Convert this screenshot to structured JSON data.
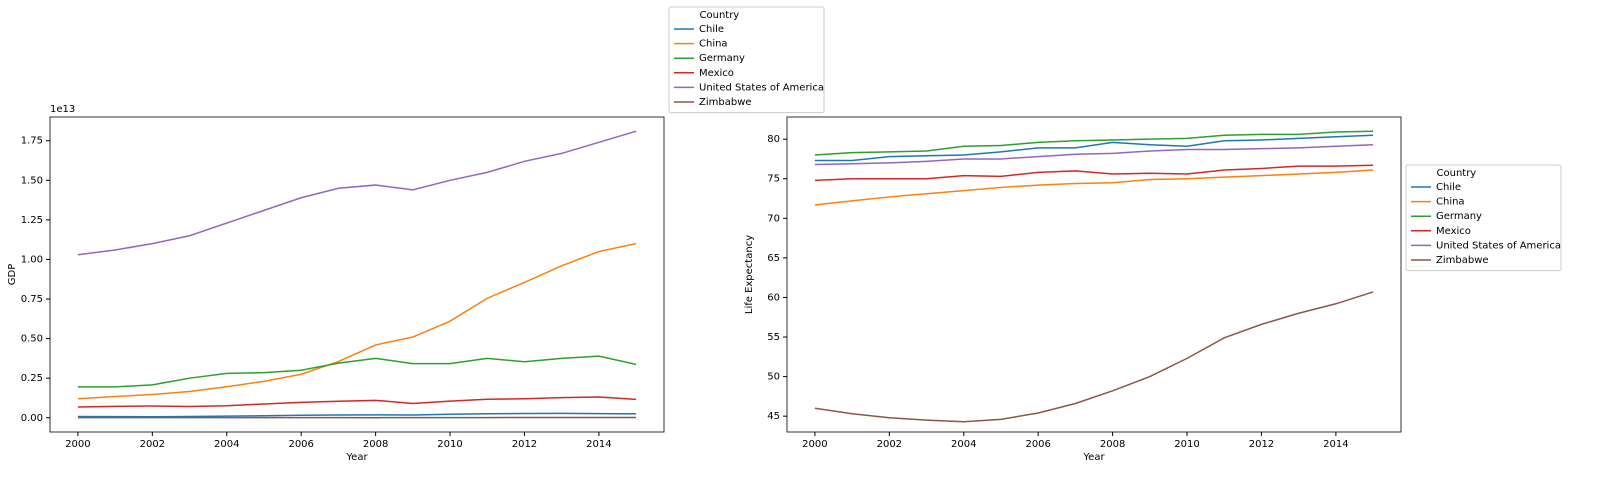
{
  "chart_data": [
    {
      "type": "line",
      "xlabel": "Year",
      "ylabel": "GDP",
      "offset_text": "1e13",
      "x": [
        2000,
        2001,
        2002,
        2003,
        2004,
        2005,
        2006,
        2007,
        2008,
        2009,
        2010,
        2011,
        2012,
        2013,
        2014,
        2015
      ],
      "xlim": [
        1999.25,
        2015.75
      ],
      "xticks": [
        2000,
        2002,
        2004,
        2006,
        2008,
        2010,
        2012,
        2014
      ],
      "ylim": [
        -0.09,
        1.9
      ],
      "yticks": [
        {
          "value": 0,
          "label": "0.00"
        },
        {
          "value": 0.25,
          "label": "0.25"
        },
        {
          "value": 0.5,
          "label": "0.50"
        },
        {
          "value": 0.75,
          "label": "0.75"
        },
        {
          "value": 1,
          "label": "1.00"
        },
        {
          "value": 1.25,
          "label": "1.25"
        },
        {
          "value": 1.5,
          "label": "1.50"
        },
        {
          "value": 1.75,
          "label": "1.75"
        }
      ],
      "legend_title": "Country",
      "legend_loc": "above",
      "series": [
        {
          "name": "Chile",
          "color": "#1f77b4",
          "values": [
            0.0078,
            0.0069,
            0.0067,
            0.0076,
            0.0099,
            0.0123,
            0.0155,
            0.0173,
            0.018,
            0.0172,
            0.0218,
            0.0252,
            0.0267,
            0.0278,
            0.026,
            0.0242
          ]
        },
        {
          "name": "China",
          "color": "#ff7f0e",
          "values": [
            0.12,
            0.134,
            0.147,
            0.166,
            0.196,
            0.23,
            0.275,
            0.355,
            0.46,
            0.51,
            0.61,
            0.755,
            0.855,
            0.96,
            1.05,
            1.1
          ]
        },
        {
          "name": "Germany",
          "color": "#2ca02c",
          "values": [
            0.195,
            0.195,
            0.208,
            0.25,
            0.28,
            0.285,
            0.3,
            0.345,
            0.375,
            0.342,
            0.342,
            0.375,
            0.354,
            0.375,
            0.389,
            0.337
          ]
        },
        {
          "name": "Mexico",
          "color": "#d62728",
          "values": [
            0.068,
            0.072,
            0.074,
            0.071,
            0.076,
            0.087,
            0.097,
            0.104,
            0.11,
            0.09,
            0.105,
            0.117,
            0.12,
            0.127,
            0.131,
            0.116
          ]
        },
        {
          "name": "United States of America",
          "color": "#9467bd",
          "values": [
            1.03,
            1.06,
            1.1,
            1.15,
            1.23,
            1.31,
            1.39,
            1.45,
            1.47,
            1.44,
            1.5,
            1.55,
            1.62,
            1.67,
            1.74,
            1.81
          ]
        },
        {
          "name": "Zimbabwe",
          "color": "#8c564b",
          "values": [
            0.00066,
            0.00068,
            0.00063,
            0.00055,
            0.00054,
            0.00058,
            0.00054,
            0.00049,
            0.0004,
            0.0009,
            0.001,
            0.0012,
            0.0014,
            0.0015,
            0.0015,
            0.0016
          ]
        }
      ]
    },
    {
      "type": "line",
      "xlabel": "Year",
      "ylabel": "Life Expectancy",
      "x": [
        2000,
        2001,
        2002,
        2003,
        2004,
        2005,
        2006,
        2007,
        2008,
        2009,
        2010,
        2011,
        2012,
        2013,
        2014,
        2015
      ],
      "xlim": [
        1999.25,
        2015.75
      ],
      "xticks": [
        2000,
        2002,
        2004,
        2006,
        2008,
        2010,
        2012,
        2014
      ],
      "ylim": [
        43.0,
        82.8
      ],
      "yticks": [
        45,
        50,
        55,
        60,
        65,
        70,
        75,
        80
      ],
      "legend_title": "Country",
      "legend_loc": "right",
      "series": [
        {
          "name": "Chile",
          "color": "#1f77b4",
          "values": [
            77.3,
            77.3,
            77.8,
            77.9,
            78.0,
            78.4,
            78.9,
            78.9,
            79.6,
            79.3,
            79.1,
            79.8,
            79.9,
            80.1,
            80.3,
            80.5
          ]
        },
        {
          "name": "China",
          "color": "#ff7f0e",
          "values": [
            71.7,
            72.2,
            72.7,
            73.1,
            73.5,
            73.9,
            74.2,
            74.4,
            74.5,
            74.9,
            75.0,
            75.2,
            75.4,
            75.6,
            75.8,
            76.1
          ]
        },
        {
          "name": "Germany",
          "color": "#2ca02c",
          "values": [
            78.0,
            78.3,
            78.4,
            78.5,
            79.1,
            79.2,
            79.6,
            79.8,
            79.9,
            80.0,
            80.1,
            80.5,
            80.6,
            80.6,
            80.9,
            81.0
          ]
        },
        {
          "name": "Mexico",
          "color": "#d62728",
          "values": [
            74.8,
            75.0,
            75.0,
            75.0,
            75.4,
            75.3,
            75.8,
            76.0,
            75.6,
            75.7,
            75.6,
            76.1,
            76.3,
            76.6,
            76.6,
            76.7
          ]
        },
        {
          "name": "United States of America",
          "color": "#9467bd",
          "values": [
            76.8,
            76.9,
            77.0,
            77.2,
            77.5,
            77.5,
            77.8,
            78.1,
            78.2,
            78.5,
            78.7,
            78.7,
            78.8,
            78.9,
            79.1,
            79.3
          ]
        },
        {
          "name": "Zimbabwe",
          "color": "#8c564b",
          "values": [
            46.0,
            45.3,
            44.8,
            44.5,
            44.3,
            44.6,
            45.4,
            46.6,
            48.2,
            50.0,
            52.3,
            54.9,
            56.6,
            58.0,
            59.2,
            60.7
          ]
        }
      ]
    }
  ]
}
